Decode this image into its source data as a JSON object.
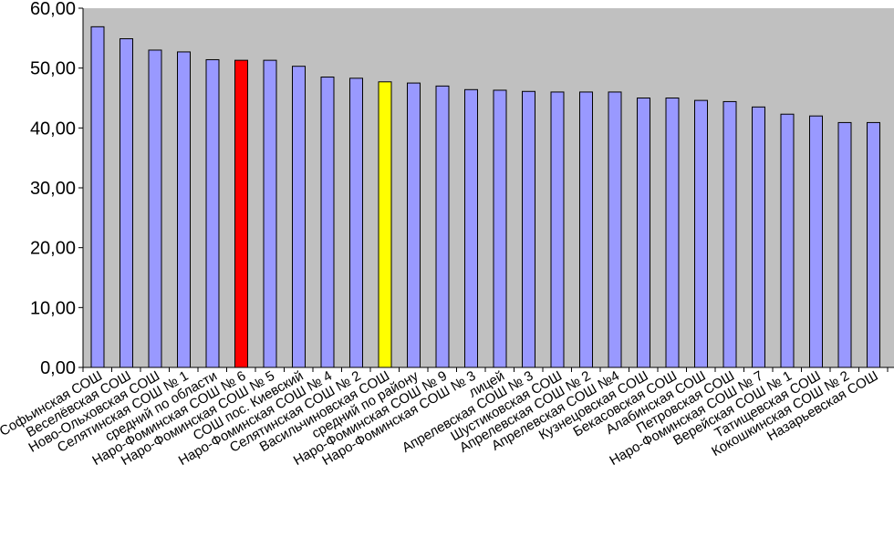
{
  "chart_data": {
    "type": "bar",
    "title": "",
    "xlabel": "",
    "ylabel": "",
    "ylim": [
      0,
      60
    ],
    "ytick_labels": [
      "0,00",
      "10,00",
      "20,00",
      "30,00",
      "40,00",
      "50,00",
      "60,00"
    ],
    "grid": false,
    "plot_background": "#c0c0c0",
    "default_bar_color": "#9999ff",
    "categories": [
      "Софьинская СОШ",
      "Веселёвская СОШ",
      "Ново-Ольховская СОШ",
      "Селятинская СОШ № 1",
      "средний по области",
      "Наро-Фоминская СОШ № 6",
      "Наро-Фоминская СОШ № 5",
      "СОШ пос. Киевский",
      "Наро-Фоминская СОШ № 4",
      "Селятинская СОШ № 2",
      "Васильчиновская СОШ",
      "средний по району",
      "Наро-Фоминская СОШ № 9",
      "Наро-Фоминская СОШ № 3",
      "лицей",
      "Апрелевская СОШ № 3",
      "Шустиковская СОШ",
      "Апрелевская СОШ № 2",
      "Апрелевская СОШ №4",
      "Кузнецовская СОШ",
      "Бекасовская СОШ",
      "Алабинская СОШ",
      "Петровская СОШ",
      "Наро-Фоминская СОШ № 7",
      "Верейская СОШ № 1",
      "Татищевская СОШ",
      "Кокошкинская СОШ № 2",
      "Назарьевская СОШ"
    ],
    "values": [
      56.9,
      54.9,
      53.0,
      52.7,
      51.4,
      51.3,
      51.3,
      50.3,
      48.5,
      48.3,
      47.7,
      47.5,
      47.0,
      46.4,
      46.3,
      46.1,
      46.0,
      46.0,
      46.0,
      45.0,
      45.0,
      44.6,
      44.4,
      43.5,
      42.3,
      42.0,
      40.9,
      40.9
    ],
    "highlight_colors": {
      "Наро-Фоминская СОШ № 6": "#ff0000",
      "Васильчиновская СОШ": "#ffff00"
    }
  }
}
